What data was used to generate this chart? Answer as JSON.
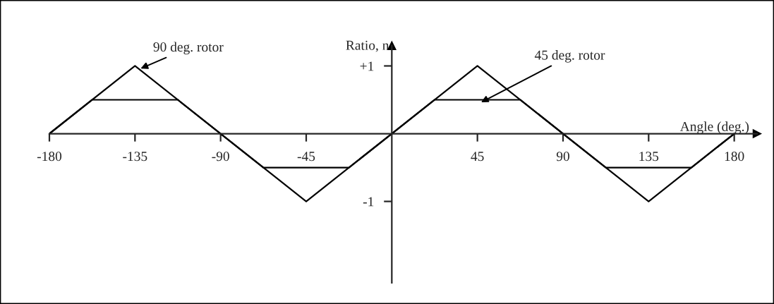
{
  "chart_data": {
    "type": "line",
    "xlabel": "Angle (deg.)",
    "ylabel": "Ratio, n",
    "x": [
      -180,
      -135,
      -90,
      -45,
      0,
      45,
      90,
      135,
      180
    ],
    "series": [
      {
        "color": "#000000",
        "values": [
          0,
          1,
          0,
          -1,
          0,
          1,
          0,
          -1,
          0
        ]
      },
      {
        "color": "#000000",
        "x": [
          -180,
          -157.5,
          -112.5,
          -67.5,
          -22.5,
          22.5,
          67.5,
          112.5,
          157.5,
          180
        ],
        "values": [
          0,
          0.5,
          0.5,
          -0.5,
          -0.5,
          0.5,
          0.5,
          -0.5,
          -0.5,
          0
        ]
      }
    ],
    "xlim": [
      -180,
      192
    ],
    "ylim": [
      -2.2,
      1.3
    ],
    "xticks": [
      -180,
      -135,
      -90,
      -45,
      45,
      90,
      135,
      180
    ],
    "yticks": [
      {
        "value": 1,
        "label": "+1"
      },
      -1
    ],
    "annotations": [
      {
        "text": "90 deg. rotor",
        "x": -133,
        "y": 0.95
      },
      {
        "text": "45 deg. rotor",
        "x": 46,
        "y": 0.45
      }
    ],
    "grid": false,
    "marker": "none",
    "line_style": "solid"
  }
}
